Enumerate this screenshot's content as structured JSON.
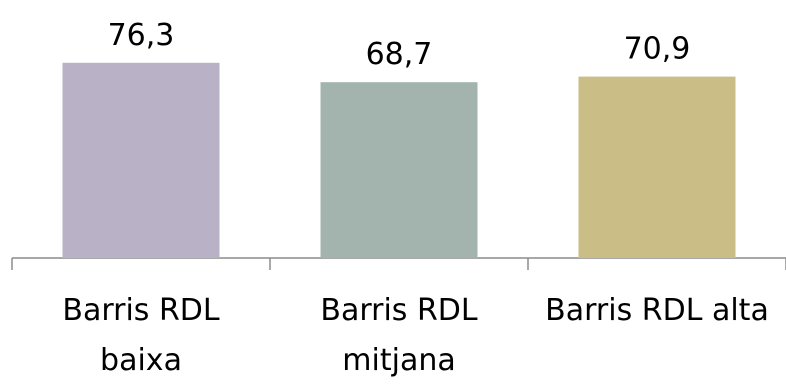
{
  "chart_data": {
    "type": "bar",
    "categories": [
      [
        "Barris RDL",
        "baixa"
      ],
      [
        "Barris RDL",
        "mitjana"
      ],
      [
        "Barris RDL alta"
      ]
    ],
    "values": [
      76.3,
      68.7,
      70.9
    ],
    "value_labels": [
      "76,3",
      "68,7",
      "70,9"
    ],
    "colors": [
      "#b9b2c6",
      "#a2b4ad",
      "#cbbd86"
    ],
    "data_labels_shown": true,
    "value_axis_visible": false,
    "gridlines": false,
    "legend": "none"
  }
}
